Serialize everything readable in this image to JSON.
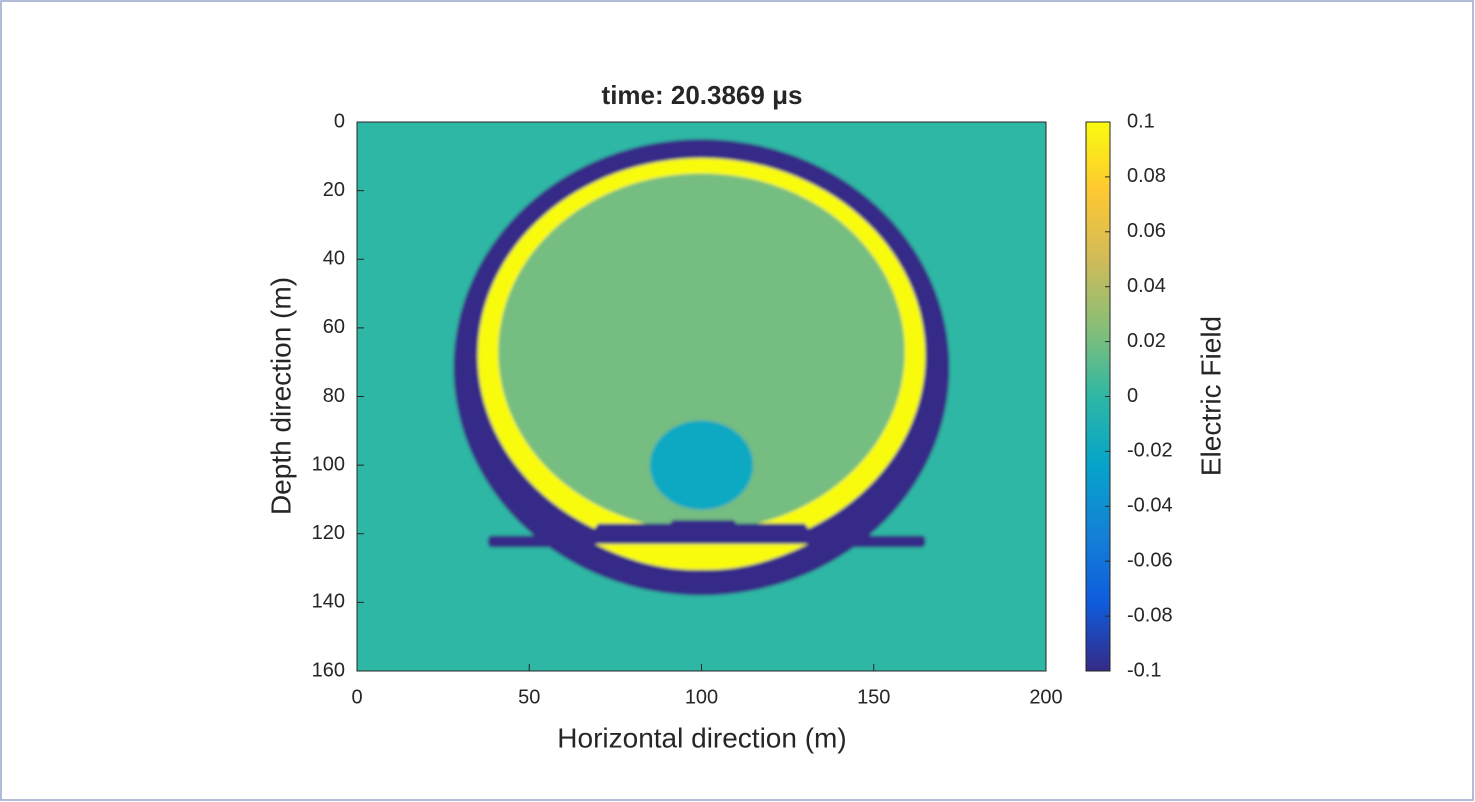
{
  "chart_data": {
    "type": "heatmap",
    "title": "time: 20.3869 μs",
    "xlabel": "Horizontal direction (m)",
    "ylabel": "Depth direction (m)",
    "colorbar_label": "Electric Field",
    "xlim": [
      0,
      200
    ],
    "ylim": [
      0,
      160
    ],
    "y_reversed": true,
    "xticks": [
      0,
      50,
      100,
      150,
      200
    ],
    "yticks": [
      0,
      20,
      40,
      60,
      80,
      100,
      120,
      140,
      160
    ],
    "clim": [
      -0.1,
      0.1
    ],
    "cticks": [
      -0.1,
      -0.08,
      -0.06,
      -0.04,
      -0.02,
      0,
      0.02,
      0.04,
      0.06,
      0.08,
      0.1
    ],
    "colormap": [
      "#352a87",
      "#0f5cdd",
      "#1481d6",
      "#06a4ca",
      "#2eb7a4",
      "#87bf77",
      "#d1bb59",
      "#fec832",
      "#f9fb0e"
    ],
    "field_values": [
      0,
      -0.1,
      0.1,
      0.02,
      -0.1,
      -0.1,
      0.1,
      -0.02,
      -0.1
    ]
  }
}
